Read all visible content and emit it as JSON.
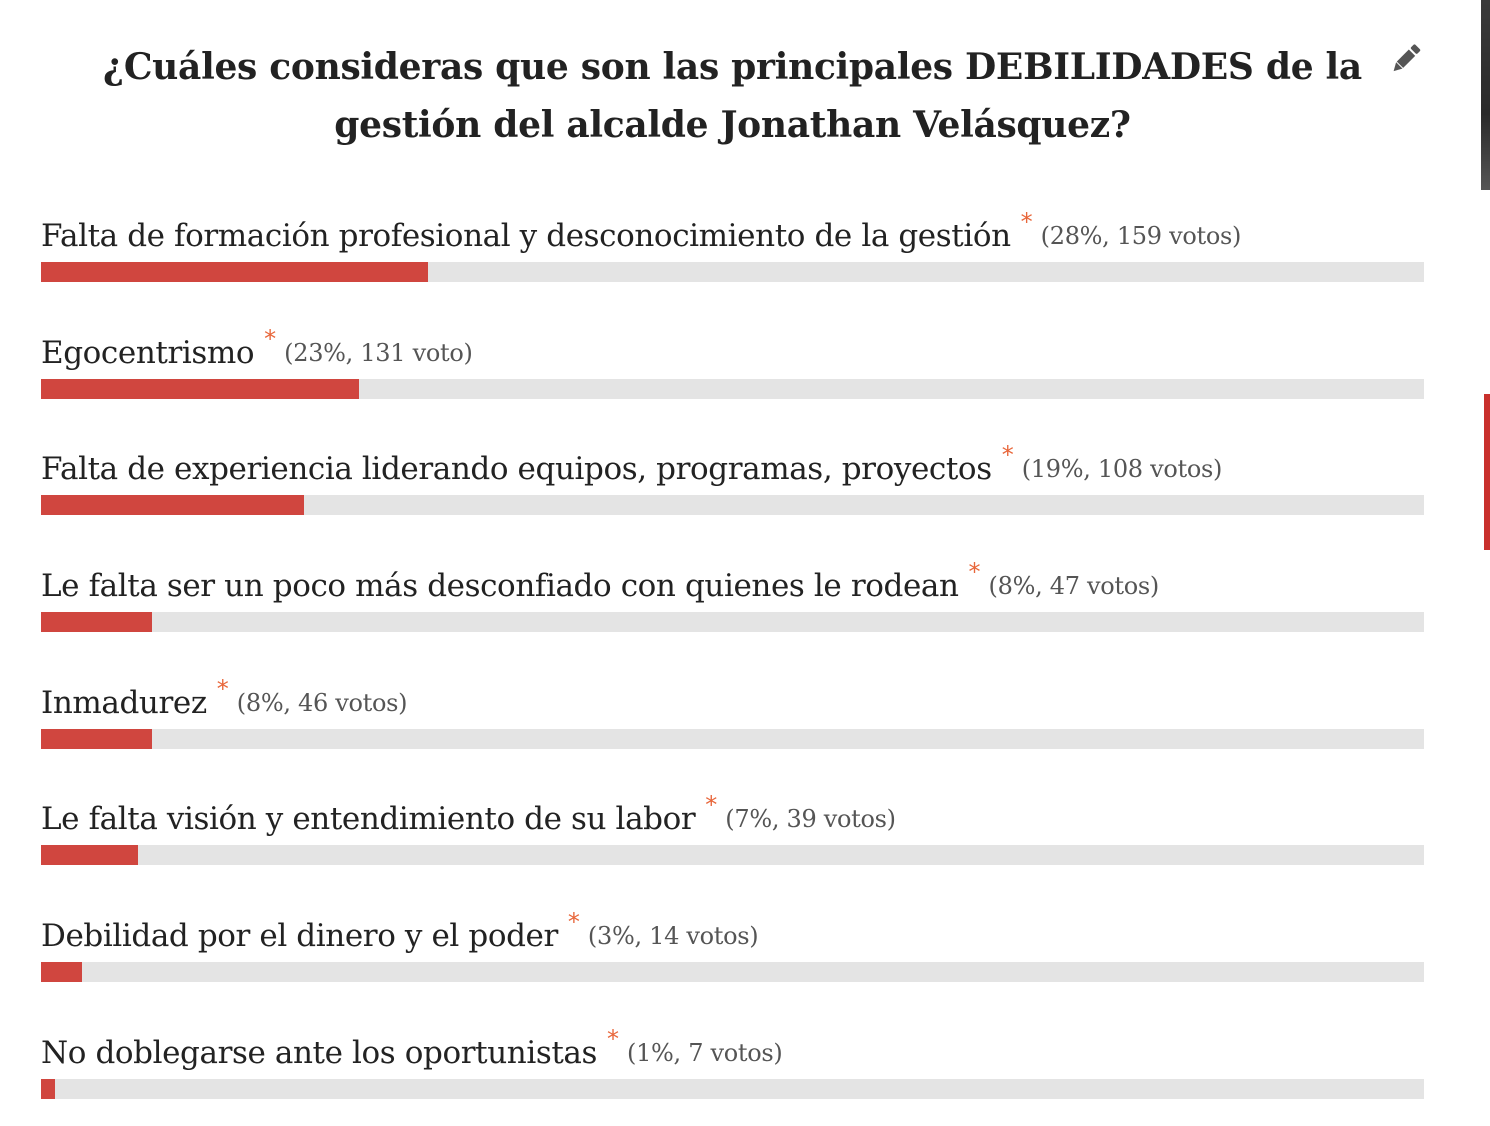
{
  "poll": {
    "title": "¿Cuáles consideras que son las principales DEBILIDADES de la gestión del alcalde Jonathan Velásquez?",
    "edit_icon": "pencil-icon",
    "accent_color": "#d0463f",
    "track_color": "#e4e4e4",
    "star_color": "#e8663a",
    "answers": [
      {
        "label": "Falta de formación profesional y desconocimiento de la gestión",
        "marker": "*",
        "stats": "(28%, 159 votos)",
        "percent": 28,
        "votes": 159
      },
      {
        "label": "Egocentrismo",
        "marker": "*",
        "stats": "(23%, 131 voto)",
        "percent": 23,
        "votes": 131
      },
      {
        "label": "Falta de experiencia liderando equipos, programas, proyectos",
        "marker": "*",
        "stats": "(19%, 108 votos)",
        "percent": 19,
        "votes": 108
      },
      {
        "label": "Le falta ser un poco más desconfiado con quienes le rodean",
        "marker": "*",
        "stats": "(8%, 47 votos)",
        "percent": 8,
        "votes": 47
      },
      {
        "label": "Inmadurez",
        "marker": "*",
        "stats": "(8%, 46 votos)",
        "percent": 8,
        "votes": 46
      },
      {
        "label": "Le falta visión y entendimiento de su labor",
        "marker": "*",
        "stats": "(7%, 39 votos)",
        "percent": 7,
        "votes": 39
      },
      {
        "label": "Debilidad por el dinero y el poder",
        "marker": "*",
        "stats": "(3%, 14 votos)",
        "percent": 3,
        "votes": 14
      },
      {
        "label": "No doblegarse ante los oportunistas",
        "marker": "*",
        "stats": "(1%, 7 votos)",
        "percent": 1,
        "votes": 7
      }
    ]
  }
}
